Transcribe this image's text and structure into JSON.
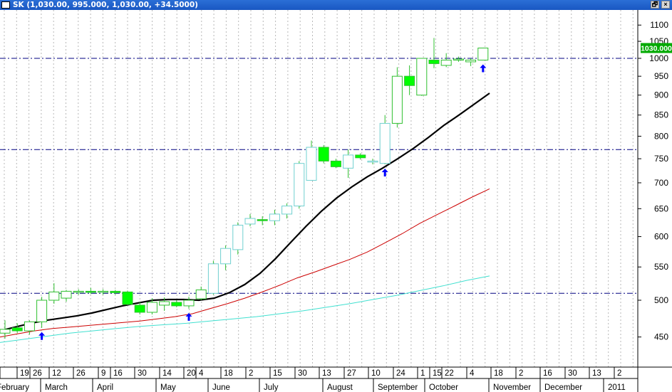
{
  "window": {
    "symbol": "SK",
    "ohlc_readout": "(1,030.00, 995.000, 1,030.00, +34.5000)",
    "restore_button": "🗗",
    "close_button": "×"
  },
  "chart_data": {
    "type": "candlestick",
    "title": "SK (1,030.00, 995.000, 1,030.00, +34.5000)",
    "y_scale": "log",
    "ylim": [
      420,
      1130
    ],
    "y_ticks": [
      450,
      500,
      550,
      600,
      650,
      700,
      750,
      800,
      850,
      900,
      950,
      1000,
      1050,
      1100
    ],
    "last_price_label": "1030.000",
    "last_price": 1030,
    "grid": "vertical dotted",
    "horizontal_lines": [
      1000,
      770,
      510
    ],
    "x_tick_labels": [
      "",
      "19",
      "26",
      "12",
      "26",
      "9",
      "16",
      "30",
      "14",
      "20",
      "4",
      "18",
      "2",
      "15",
      "30",
      "13",
      "27",
      "10",
      "24",
      "1",
      "15",
      "22",
      "4",
      "18",
      "2",
      "16",
      "30",
      "13",
      "2"
    ],
    "month_labels": [
      "February",
      "March",
      "April",
      "May",
      "June",
      "July",
      "August",
      "September",
      "October",
      "November",
      "December",
      "2011"
    ],
    "candles": [
      {
        "o": 455,
        "h": 472,
        "l": 448,
        "c": 460
      },
      {
        "o": 462,
        "h": 468,
        "l": 455,
        "c": 458
      },
      {
        "o": 458,
        "h": 472,
        "l": 453,
        "c": 470
      },
      {
        "o": 470,
        "h": 505,
        "l": 462,
        "c": 500
      },
      {
        "o": 500,
        "h": 525,
        "l": 495,
        "c": 512
      },
      {
        "o": 503,
        "h": 515,
        "l": 498,
        "c": 513
      },
      {
        "o": 512,
        "h": 516,
        "l": 508,
        "c": 513
      },
      {
        "o": 513,
        "h": 518,
        "l": 509,
        "c": 512
      },
      {
        "o": 512,
        "h": 516,
        "l": 508,
        "c": 513
      },
      {
        "o": 513,
        "h": 515,
        "l": 508,
        "c": 511
      },
      {
        "o": 512,
        "h": 514,
        "l": 493,
        "c": 494
      },
      {
        "o": 493,
        "h": 497,
        "l": 480,
        "c": 483
      },
      {
        "o": 483,
        "h": 503,
        "l": 480,
        "c": 497
      },
      {
        "o": 493,
        "h": 504,
        "l": 485,
        "c": 498
      },
      {
        "o": 497,
        "h": 500,
        "l": 490,
        "c": 492
      },
      {
        "o": 492,
        "h": 505,
        "l": 488,
        "c": 500
      },
      {
        "o": 502,
        "h": 520,
        "l": 500,
        "c": 515
      },
      {
        "o": 510,
        "h": 560,
        "l": 508,
        "c": 555
      },
      {
        "o": 555,
        "h": 585,
        "l": 545,
        "c": 580
      },
      {
        "o": 578,
        "h": 625,
        "l": 570,
        "c": 620
      },
      {
        "o": 622,
        "h": 640,
        "l": 618,
        "c": 632
      },
      {
        "o": 630,
        "h": 636,
        "l": 620,
        "c": 628
      },
      {
        "o": 628,
        "h": 648,
        "l": 620,
        "c": 640
      },
      {
        "o": 640,
        "h": 660,
        "l": 632,
        "c": 655
      },
      {
        "o": 655,
        "h": 745,
        "l": 650,
        "c": 740
      },
      {
        "o": 705,
        "h": 790,
        "l": 705,
        "c": 775
      },
      {
        "o": 775,
        "h": 780,
        "l": 740,
        "c": 745
      },
      {
        "o": 745,
        "h": 750,
        "l": 730,
        "c": 733
      },
      {
        "o": 730,
        "h": 770,
        "l": 710,
        "c": 758
      },
      {
        "o": 758,
        "h": 762,
        "l": 748,
        "c": 752
      },
      {
        "o": 745,
        "h": 750,
        "l": 738,
        "c": 745
      },
      {
        "o": 740,
        "h": 850,
        "l": 738,
        "c": 830
      },
      {
        "o": 830,
        "h": 975,
        "l": 820,
        "c": 950
      },
      {
        "o": 950,
        "h": 980,
        "l": 900,
        "c": 925
      },
      {
        "o": 900,
        "h": 1000,
        "l": 898,
        "c": 1000
      },
      {
        "o": 995,
        "h": 1060,
        "l": 972,
        "c": 985
      },
      {
        "o": 980,
        "h": 1015,
        "l": 975,
        "c": 995
      },
      {
        "o": 995,
        "h": 1005,
        "l": 990,
        "c": 998
      },
      {
        "o": 990,
        "h": 1000,
        "l": 978,
        "c": 995
      },
      {
        "o": 995,
        "h": 1030,
        "l": 995,
        "c": 1030
      }
    ],
    "series": [
      {
        "type": "line",
        "color": "#000000",
        "values": [
          458,
          463,
          468,
          472,
          475,
          478,
          482,
          487,
          492,
          496,
          500,
          501,
          501,
          500,
          503,
          511,
          523,
          540,
          563,
          590,
          618,
          645,
          670,
          692,
          712,
          730,
          750,
          772,
          797,
          825,
          850,
          877,
          905
        ]
      },
      {
        "type": "line",
        "color": "#cc0000",
        "values": [
          450,
          454,
          458,
          461,
          463,
          465,
          467,
          469,
          471,
          474,
          477,
          481,
          488,
          495,
          503,
          512,
          522,
          533,
          542,
          552,
          562,
          574,
          589,
          605,
          623,
          639,
          655,
          672,
          688
        ]
      },
      {
        "type": "line",
        "color": "#40e0d0",
        "values": [
          443,
          447,
          451,
          455,
          458,
          461,
          464,
          466,
          468,
          471,
          474,
          477,
          481,
          485,
          490,
          495,
          501,
          507,
          514,
          521,
          529,
          536
        ]
      }
    ],
    "arrows_below_candles": [
      3,
      15,
      31,
      39
    ],
    "colors": {
      "up": "#00ff00",
      "down": "#00ff00",
      "ma_fast": "#000000",
      "ma_mid": "#cc0000",
      "ma_slow": "#40e0d0",
      "level_line": "#000080",
      "arrow": "#0000ff",
      "price_label_bg": "#00aa00"
    }
  }
}
